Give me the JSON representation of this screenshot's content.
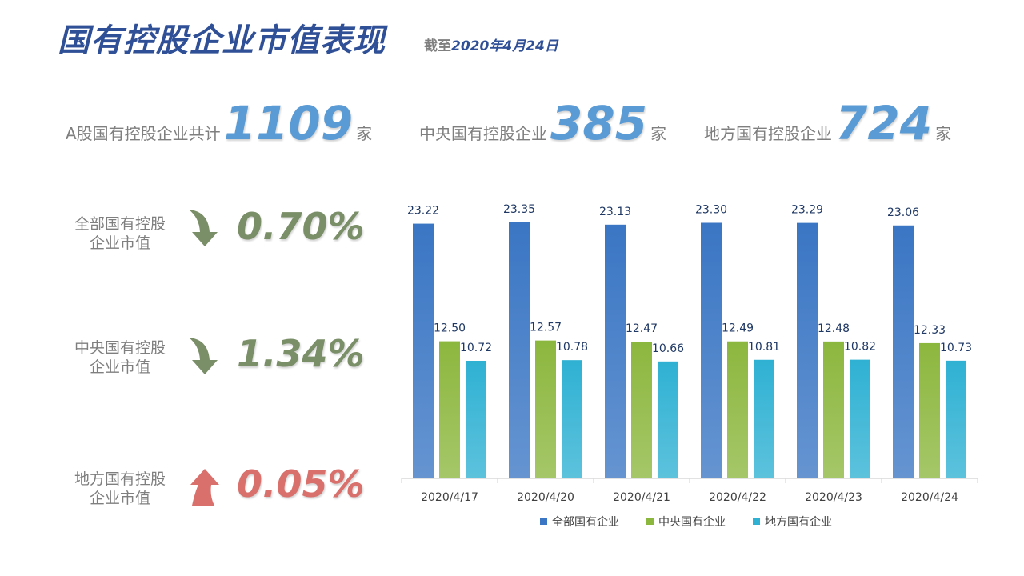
{
  "title": "国有控股企业市值表现",
  "as_of_prefix": "截至",
  "as_of_date": "2020年4月24日",
  "summary": [
    {
      "label": "A股国有控股企业共计",
      "value": "1109",
      "unit": "家"
    },
    {
      "label": "中央国有控股企业",
      "value": "385",
      "unit": "家"
    },
    {
      "label": "地方国有控股企业",
      "value": "724",
      "unit": "家"
    }
  ],
  "metrics": [
    {
      "line1": "全部国有控股",
      "line2": "企业市值",
      "direction": "down",
      "value": "0.70%",
      "color": "#7a8e68"
    },
    {
      "line1": "中央国有控股",
      "line2": "企业市值",
      "direction": "down",
      "value": "1.34%",
      "color": "#7a8e68"
    },
    {
      "line1": "地方国有控股",
      "line2": "企业市值",
      "direction": "up",
      "value": "0.05%",
      "color": "#d9706c"
    }
  ],
  "chart_data": {
    "type": "bar",
    "categories": [
      "2020/4/17",
      "2020/4/20",
      "2020/4/21",
      "2020/4/22",
      "2020/4/23",
      "2020/4/24"
    ],
    "series": [
      {
        "name": "全部国有企业",
        "values": [
          23.22,
          23.35,
          23.13,
          23.3,
          23.29,
          23.06
        ],
        "color": "#3a76c4"
      },
      {
        "name": "中央国有企业",
        "values": [
          12.5,
          12.57,
          12.47,
          12.49,
          12.48,
          12.33
        ],
        "color": "#8cb73e"
      },
      {
        "name": "地方国有企业",
        "values": [
          10.72,
          10.78,
          10.66,
          10.81,
          10.82,
          10.73
        ],
        "color": "#2fb1d3"
      }
    ],
    "ylim": [
      0,
      25
    ],
    "grid": false,
    "legend_position": "bottom"
  }
}
